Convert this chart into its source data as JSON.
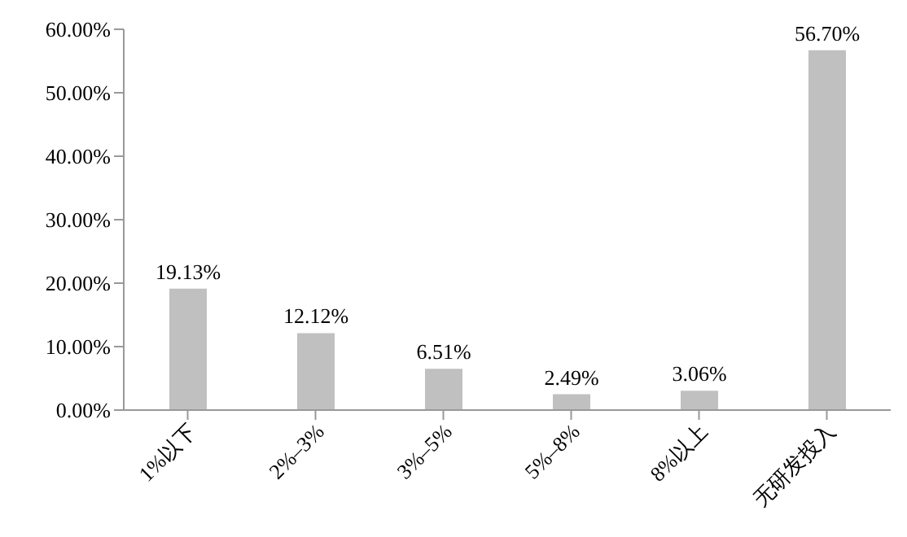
{
  "chart_data": {
    "type": "bar",
    "categories": [
      "1%以下",
      "2%–3%",
      "3%–5%",
      "5%–8%",
      "8%以上",
      "无研发投入"
    ],
    "values": [
      19.13,
      12.12,
      6.51,
      2.49,
      3.06,
      56.7
    ],
    "value_labels": [
      "19.13%",
      "12.12%",
      "6.51%",
      "2.49%",
      "3.06%",
      "56.70%"
    ],
    "color": "#c0c0c0",
    "ylim": [
      0,
      60
    ],
    "yticks": [
      {
        "value": 0,
        "label": "0.00%"
      },
      {
        "value": 10,
        "label": "10.00%"
      },
      {
        "value": 20,
        "label": "20.00%"
      },
      {
        "value": 30,
        "label": "30.00%"
      },
      {
        "value": 40,
        "label": "40.00%"
      },
      {
        "value": 50,
        "label": "50.00%"
      },
      {
        "value": 60,
        "label": "60.00%"
      }
    ],
    "grid": false,
    "legend": false
  }
}
